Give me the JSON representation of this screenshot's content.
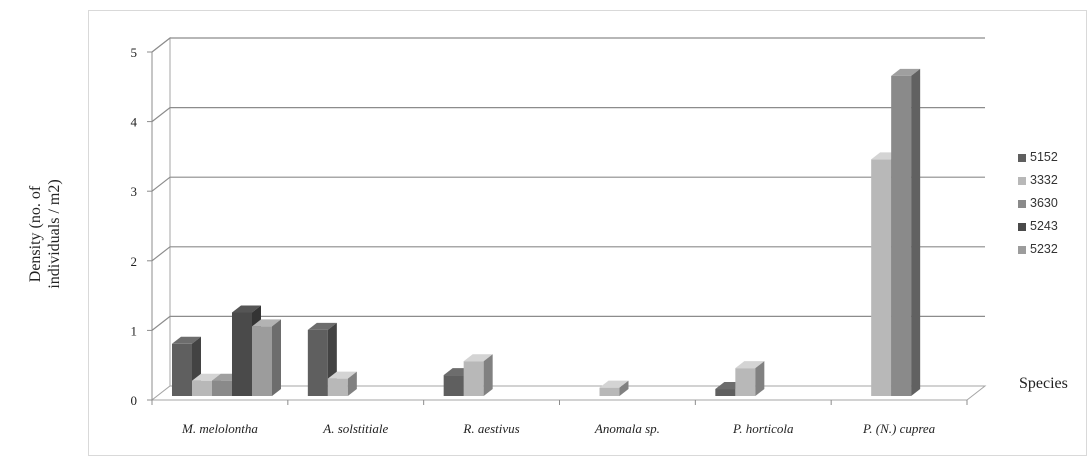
{
  "chart_data": {
    "type": "bar",
    "title": "",
    "ylabel": [
      "Density (no. of",
      "individuals / m2)"
    ],
    "xlabel": "Species",
    "ylim": [
      0,
      5
    ],
    "yticks": [
      "0",
      "1",
      "2",
      "3",
      "4",
      "5"
    ],
    "grid": true,
    "legend_position": "right",
    "categories": [
      "M. melolontha",
      "A. solstitiale",
      "R. aestivus",
      "Anomala sp.",
      "P. horticola",
      "P. (N.) cupreа"
    ],
    "series": [
      {
        "name": "5152",
        "color": "#5f5f5f",
        "values": [
          0.75,
          0.95,
          0.3,
          0,
          0.1,
          0
        ]
      },
      {
        "name": "3332",
        "color": "#b8b8b8",
        "values": [
          0.22,
          0.25,
          0.5,
          0.12,
          0.4,
          3.4
        ]
      },
      {
        "name": "3630",
        "color": "#8a8a8a",
        "values": [
          0.22,
          0,
          0,
          0,
          0,
          4.6
        ]
      },
      {
        "name": "5243",
        "color": "#4a4a4a",
        "values": [
          1.2,
          0,
          0,
          0,
          0,
          0
        ]
      },
      {
        "name": "5232",
        "color": "#9c9c9c",
        "values": [
          1.0,
          0,
          0,
          0,
          0,
          0
        ]
      }
    ]
  }
}
